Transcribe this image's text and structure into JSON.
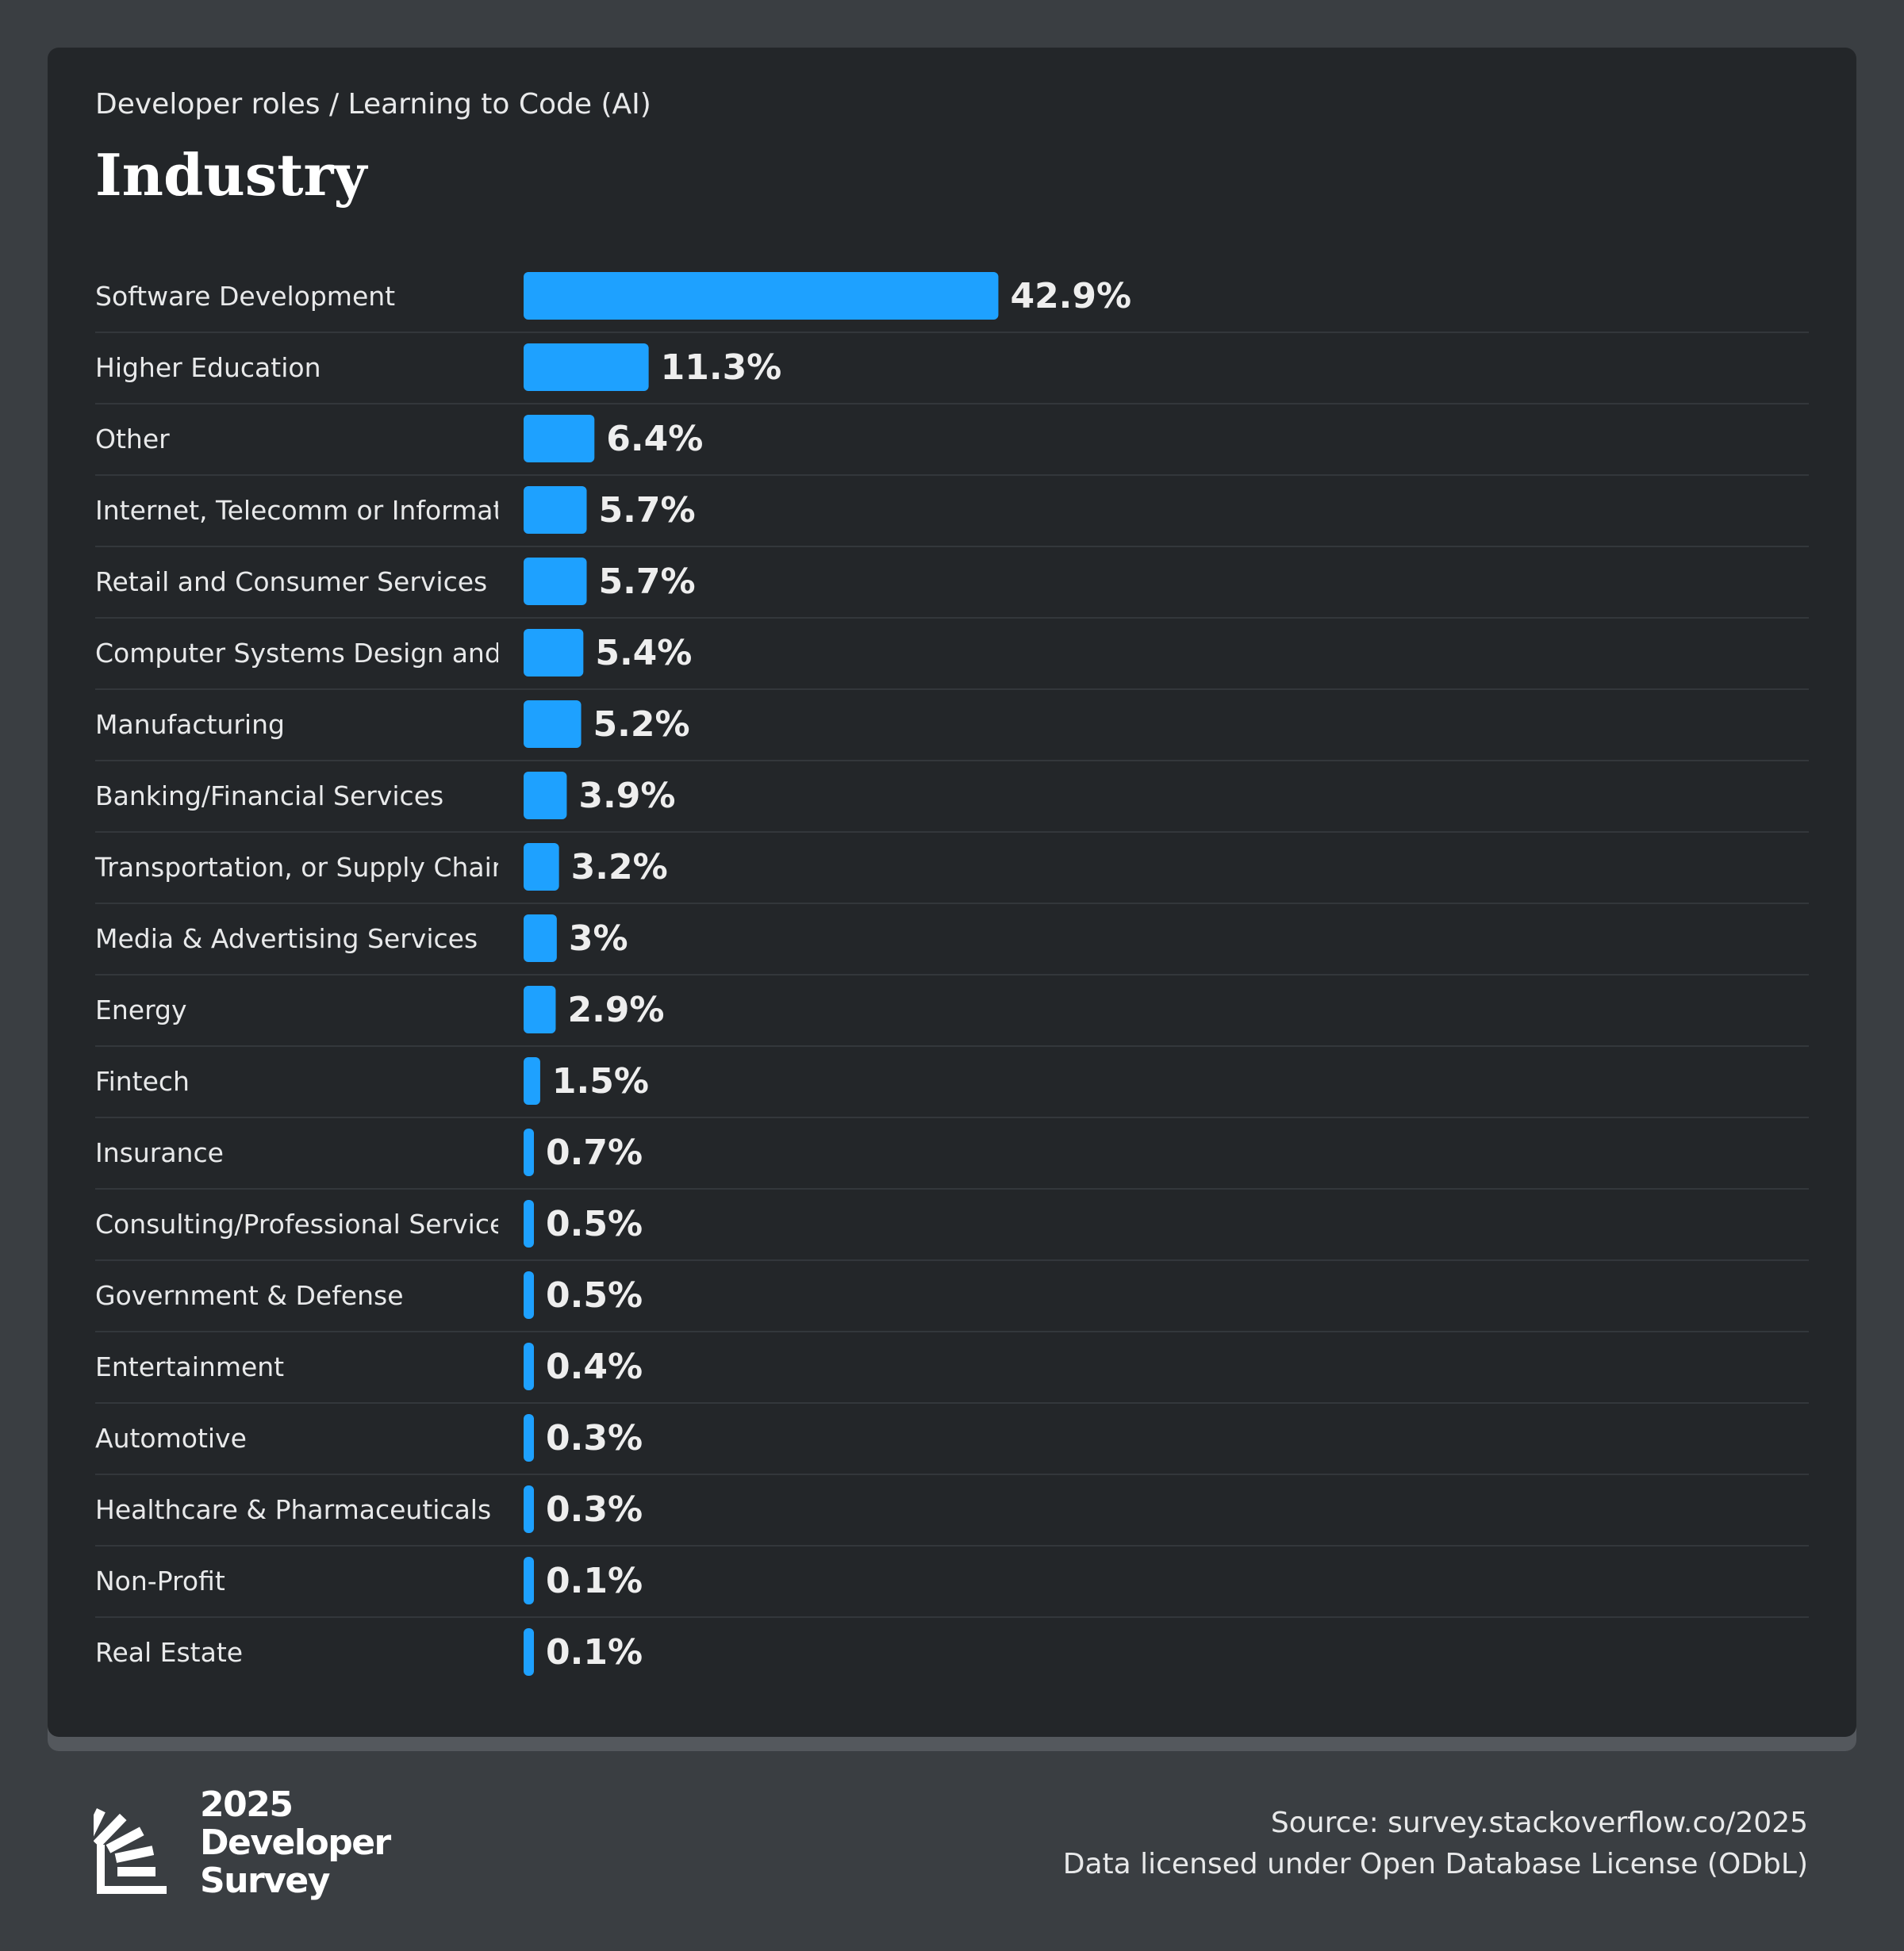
{
  "header": {
    "breadcrumb": "Developer roles / Learning to Code (AI)",
    "title": "Industry"
  },
  "colors": {
    "background": "#3a3e42",
    "card": "#232629",
    "bar": "#1ea1ff",
    "divider": "#33373b",
    "text": "#e8e9ea"
  },
  "chart_data": {
    "type": "bar",
    "orientation": "horizontal",
    "unit": "%",
    "categories": [
      "Software Development",
      "Higher Education",
      "Other",
      "Internet, Telecomm or Information Services",
      "Retail and Consumer Services",
      "Computer Systems Design and Services",
      "Manufacturing",
      "Banking/Financial Services",
      "Transportation, or Supply Chain",
      "Media & Advertising Services",
      "Energy",
      "Fintech",
      "Insurance",
      "Consulting/Professional Services",
      "Government & Defense",
      "Entertainment",
      "Automotive",
      "Healthcare & Pharmaceuticals",
      "Non-Profit",
      "Real Estate"
    ],
    "values": [
      42.9,
      11.3,
      6.4,
      5.7,
      5.7,
      5.4,
      5.2,
      3.9,
      3.2,
      3,
      2.9,
      1.5,
      0.7,
      0.5,
      0.5,
      0.4,
      0.3,
      0.3,
      0.1,
      0.1
    ],
    "value_labels": [
      "42.9%",
      "11.3%",
      "6.4%",
      "5.7%",
      "5.7%",
      "5.4%",
      "5.2%",
      "3.9%",
      "3.2%",
      "3%",
      "2.9%",
      "1.5%",
      "0.7%",
      "0.5%",
      "0.5%",
      "0.4%",
      "0.3%",
      "0.3%",
      "0.1%",
      "0.1%"
    ],
    "xlim": [
      0,
      100
    ],
    "grid": false,
    "legend": "none"
  },
  "footer": {
    "logo": {
      "year": "2025",
      "line1": "Developer",
      "line2": "Survey"
    },
    "source": "Source: survey.stackoverflow.co/2025",
    "license": "Data licensed under Open Database License (ODbL)"
  }
}
